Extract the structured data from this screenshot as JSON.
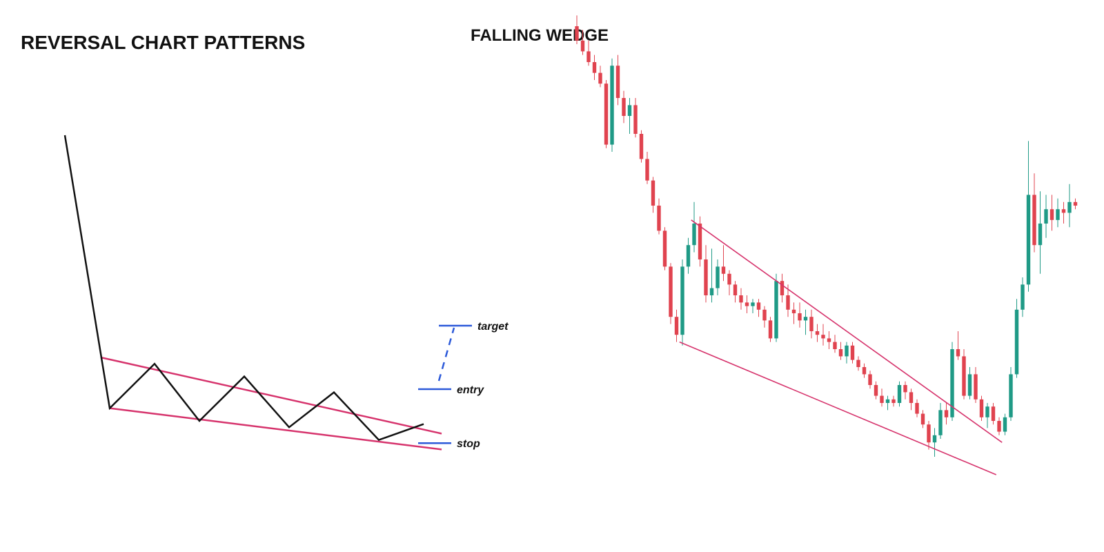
{
  "page": {
    "title": "REVERSAL CHART PATTERNS",
    "subtitle": "FALLING WEDGE"
  },
  "colors": {
    "price_path": "#111111",
    "wedge_lines": "#d6336c",
    "levels": "#2b59d9",
    "bullish": "#1f9a86",
    "bearish": "#e0434f"
  },
  "chart_data": [
    {
      "type": "line",
      "title": "",
      "description_role": "schematic",
      "x": [
        0,
        1,
        2,
        3,
        4,
        5,
        6,
        7,
        8
      ],
      "price_path": [
        100,
        14,
        28,
        10,
        24,
        8,
        19,
        4,
        9
      ],
      "wedge": {
        "upper": {
          "x": [
            0.8,
            8.4
          ],
          "y": [
            30,
            6
          ]
        },
        "lower": {
          "x": [
            1,
            8.4
          ],
          "y": [
            14,
            1
          ]
        }
      },
      "levels": [
        {
          "label": "target",
          "value": 40
        },
        {
          "label": "entry",
          "value": 20
        },
        {
          "label": "stop",
          "value": 3
        }
      ],
      "grid": false
    },
    {
      "type": "candlestick",
      "title": "",
      "grid": false,
      "candles": [
        {
          "o": 85,
          "h": 88,
          "l": 80,
          "c": 81
        },
        {
          "o": 81,
          "h": 84,
          "l": 77,
          "c": 78
        },
        {
          "o": 78,
          "h": 81,
          "l": 74,
          "c": 75
        },
        {
          "o": 75,
          "h": 77,
          "l": 70,
          "c": 72
        },
        {
          "o": 72,
          "h": 74,
          "l": 68,
          "c": 69
        },
        {
          "o": 69,
          "h": 70,
          "l": 51,
          "c": 52
        },
        {
          "o": 52,
          "h": 76,
          "l": 50,
          "c": 74
        },
        {
          "o": 74,
          "h": 77,
          "l": 63,
          "c": 65
        },
        {
          "o": 65,
          "h": 67,
          "l": 58,
          "c": 60
        },
        {
          "o": 60,
          "h": 65,
          "l": 55,
          "c": 63
        },
        {
          "o": 63,
          "h": 65,
          "l": 54,
          "c": 55
        },
        {
          "o": 55,
          "h": 56,
          "l": 47,
          "c": 48
        },
        {
          "o": 48,
          "h": 50,
          "l": 41,
          "c": 42
        },
        {
          "o": 42,
          "h": 43,
          "l": 33,
          "c": 35
        },
        {
          "o": 35,
          "h": 37,
          "l": 27,
          "c": 28
        },
        {
          "o": 28,
          "h": 29,
          "l": 17,
          "c": 18
        },
        {
          "o": 18,
          "h": 19,
          "l": 2,
          "c": 4
        },
        {
          "o": 4,
          "h": 6,
          "l": -3,
          "c": -1
        },
        {
          "o": -1,
          "h": 20,
          "l": -4,
          "c": 18
        },
        {
          "o": 18,
          "h": 26,
          "l": 16,
          "c": 24
        },
        {
          "o": 24,
          "h": 36,
          "l": 22,
          "c": 30
        },
        {
          "o": 30,
          "h": 32,
          "l": 18,
          "c": 20
        },
        {
          "o": 20,
          "h": 24,
          "l": 8,
          "c": 10
        },
        {
          "o": 10,
          "h": 23,
          "l": 8,
          "c": 12
        },
        {
          "o": 12,
          "h": 20,
          "l": 10,
          "c": 18
        },
        {
          "o": 18,
          "h": 24,
          "l": 14,
          "c": 16
        },
        {
          "o": 16,
          "h": 17,
          "l": 10,
          "c": 13
        },
        {
          "o": 13,
          "h": 14,
          "l": 8,
          "c": 10
        },
        {
          "o": 10,
          "h": 12,
          "l": 6,
          "c": 8
        },
        {
          "o": 8,
          "h": 10,
          "l": 5,
          "c": 7
        },
        {
          "o": 7,
          "h": 9,
          "l": 5,
          "c": 8
        },
        {
          "o": 8,
          "h": 9,
          "l": 4,
          "c": 6
        },
        {
          "o": 6,
          "h": 7,
          "l": 1,
          "c": 3
        },
        {
          "o": 3,
          "h": 4,
          "l": -3,
          "c": -2
        },
        {
          "o": -2,
          "h": 16,
          "l": -3,
          "c": 14
        },
        {
          "o": 14,
          "h": 16,
          "l": 8,
          "c": 10
        },
        {
          "o": 10,
          "h": 13,
          "l": 4,
          "c": 6
        },
        {
          "o": 6,
          "h": 8,
          "l": 2,
          "c": 5
        },
        {
          "o": 5,
          "h": 8,
          "l": 1,
          "c": 3
        },
        {
          "o": 3,
          "h": 6,
          "l": -1,
          "c": 4
        },
        {
          "o": 4,
          "h": 6,
          "l": -2,
          "c": 0
        },
        {
          "o": 0,
          "h": 2,
          "l": -3,
          "c": -1
        },
        {
          "o": -1,
          "h": 2,
          "l": -4,
          "c": -2
        },
        {
          "o": -2,
          "h": 0,
          "l": -5,
          "c": -3
        },
        {
          "o": -3,
          "h": -1,
          "l": -6,
          "c": -5
        },
        {
          "o": -5,
          "h": -3,
          "l": -8,
          "c": -7
        },
        {
          "o": -7,
          "h": -3,
          "l": -9,
          "c": -4
        },
        {
          "o": -4,
          "h": -3,
          "l": -9,
          "c": -8
        },
        {
          "o": -8,
          "h": -7,
          "l": -11,
          "c": -10
        },
        {
          "o": -10,
          "h": -9,
          "l": -13,
          "c": -12
        },
        {
          "o": -12,
          "h": -11,
          "l": -16,
          "c": -15
        },
        {
          "o": -15,
          "h": -14,
          "l": -19,
          "c": -18
        },
        {
          "o": -18,
          "h": -16,
          "l": -21,
          "c": -20
        },
        {
          "o": -20,
          "h": -18,
          "l": -22,
          "c": -19
        },
        {
          "o": -19,
          "h": -18,
          "l": -21,
          "c": -20
        },
        {
          "o": -20,
          "h": -14,
          "l": -21,
          "c": -15
        },
        {
          "o": -15,
          "h": -14,
          "l": -19,
          "c": -17
        },
        {
          "o": -17,
          "h": -16,
          "l": -22,
          "c": -20
        },
        {
          "o": -20,
          "h": -19,
          "l": -24,
          "c": -23
        },
        {
          "o": -23,
          "h": -22,
          "l": -27,
          "c": -26
        },
        {
          "o": -26,
          "h": -25,
          "l": -33,
          "c": -31
        },
        {
          "o": -31,
          "h": -27,
          "l": -35,
          "c": -29
        },
        {
          "o": -29,
          "h": -20,
          "l": -30,
          "c": -22
        },
        {
          "o": -22,
          "h": -20,
          "l": -26,
          "c": -24
        },
        {
          "o": -24,
          "h": -3,
          "l": -25,
          "c": -5
        },
        {
          "o": -5,
          "h": 0,
          "l": -8,
          "c": -7
        },
        {
          "o": -7,
          "h": -5,
          "l": -19,
          "c": -18
        },
        {
          "o": -18,
          "h": -10,
          "l": -19,
          "c": -12
        },
        {
          "o": -12,
          "h": -10,
          "l": -20,
          "c": -19
        },
        {
          "o": -19,
          "h": -18,
          "l": -25,
          "c": -24
        },
        {
          "o": -24,
          "h": -20,
          "l": -27,
          "c": -21
        },
        {
          "o": -21,
          "h": -20,
          "l": -26,
          "c": -25
        },
        {
          "o": -25,
          "h": -24,
          "l": -29,
          "c": -28
        },
        {
          "o": -28,
          "h": -23,
          "l": -29,
          "c": -24
        },
        {
          "o": -24,
          "h": -10,
          "l": -25,
          "c": -12
        },
        {
          "o": -12,
          "h": 9,
          "l": -13,
          "c": 6
        },
        {
          "o": 6,
          "h": 15,
          "l": 4,
          "c": 13
        },
        {
          "o": 13,
          "h": 53,
          "l": 11,
          "c": 38
        },
        {
          "o": 38,
          "h": 44,
          "l": 22,
          "c": 24
        },
        {
          "o": 24,
          "h": 39,
          "l": 16,
          "c": 30
        },
        {
          "o": 30,
          "h": 38,
          "l": 26,
          "c": 34
        },
        {
          "o": 34,
          "h": 38,
          "l": 28,
          "c": 31
        },
        {
          "o": 31,
          "h": 37,
          "l": 29,
          "c": 34
        },
        {
          "o": 34,
          "h": 36,
          "l": 30,
          "c": 33
        },
        {
          "o": 33,
          "h": 41,
          "l": 29,
          "c": 36
        },
        {
          "o": 36,
          "h": 37,
          "l": 34,
          "c": 35
        }
      ],
      "trendlines": {
        "upper": {
          "x": [
            19.5,
            72.5
          ],
          "y": [
            31,
            -31
          ]
        },
        "lower": {
          "x": [
            17.5,
            71.5
          ],
          "y": [
            -3,
            -40
          ]
        }
      }
    }
  ]
}
